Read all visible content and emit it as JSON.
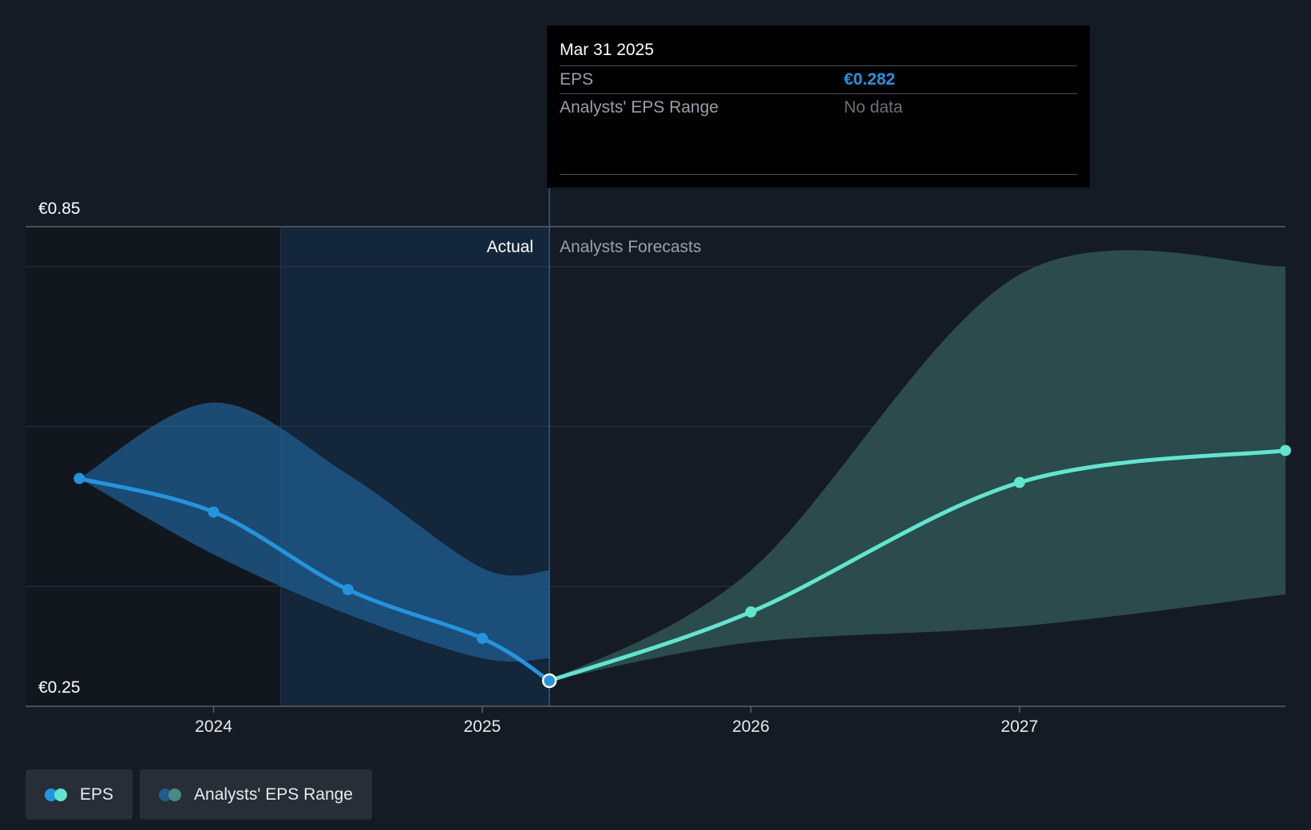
{
  "tooltip": {
    "date": "Mar 31 2025",
    "eps_label": "EPS",
    "eps_value": "€0.282",
    "range_label": "Analysts' EPS Range",
    "range_value": "No data"
  },
  "region_labels": {
    "actual": "Actual",
    "forecast": "Analysts Forecasts"
  },
  "legend": {
    "eps": "EPS",
    "range": "Analysts' EPS Range"
  },
  "colors": {
    "background": "#151b24",
    "eps_actual": "#2394df",
    "eps_forecast": "#5fe6cf",
    "range_actual": "#1f5d8f",
    "range_forecast": "#2c4e4f"
  },
  "chart_data": {
    "type": "line",
    "y_tick_labels": [
      "€0.85",
      "€0.25"
    ],
    "ylim": [
      0.25,
      0.85
    ],
    "x_tick_labels": [
      "2024",
      "2025",
      "2026",
      "2027"
    ],
    "x_ticks": [
      2024.0,
      2025.0,
      2026.0,
      2027.0
    ],
    "xlim": [
      2023.3,
      2027.99
    ],
    "actual_until": 2025.25,
    "series": [
      {
        "name": "EPS",
        "segment": "actual",
        "points": [
          {
            "x": 2023.5,
            "y": 0.535
          },
          {
            "x": 2024.0,
            "y": 0.493
          },
          {
            "x": 2024.5,
            "y": 0.396
          },
          {
            "x": 2025.0,
            "y": 0.335
          },
          {
            "x": 2025.25,
            "y": 0.282
          }
        ]
      },
      {
        "name": "EPS",
        "segment": "forecast",
        "points": [
          {
            "x": 2025.25,
            "y": 0.282
          },
          {
            "x": 2026.0,
            "y": 0.368
          },
          {
            "x": 2027.0,
            "y": 0.53
          },
          {
            "x": 2027.99,
            "y": 0.57
          }
        ]
      }
    ],
    "range_actual": {
      "x": [
        2023.5,
        2024.0,
        2024.5,
        2025.0,
        2025.25
      ],
      "low": [
        0.535,
        0.44,
        0.365,
        0.31,
        0.31
      ],
      "high": [
        0.535,
        0.63,
        0.54,
        0.423,
        0.42
      ]
    },
    "range_forecast": {
      "x": [
        2025.25,
        2026.0,
        2027.0,
        2027.99
      ],
      "low": [
        0.282,
        0.33,
        0.35,
        0.39
      ],
      "high": [
        0.282,
        0.42,
        0.79,
        0.8
      ]
    }
  }
}
